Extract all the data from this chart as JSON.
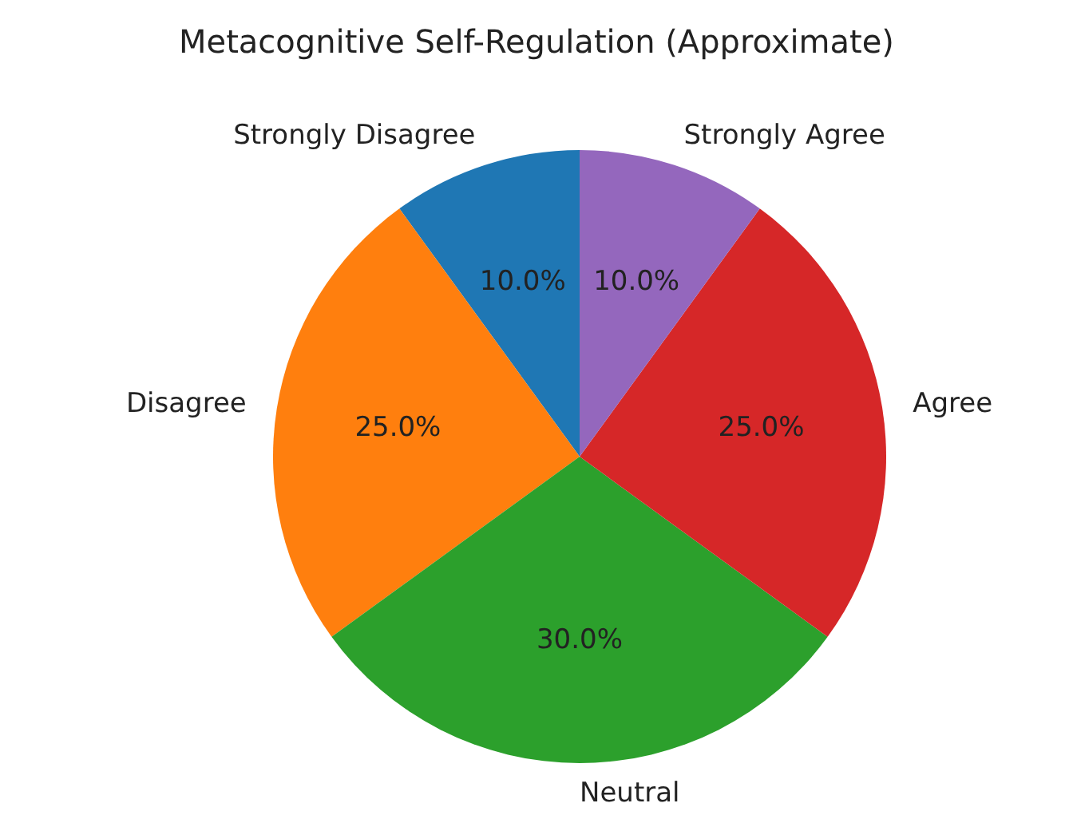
{
  "chart_data": {
    "type": "pie",
    "title": "Metacognitive Self-Regulation (Approximate)",
    "categories": [
      "Strongly Disagree",
      "Disagree",
      "Neutral",
      "Agree",
      "Strongly Agree"
    ],
    "values": [
      10,
      25,
      30,
      25,
      10
    ],
    "value_labels": [
      "10.0%",
      "25.0%",
      "30.0%",
      "25.0%",
      "10.0%"
    ],
    "colors": [
      "#1f77b4",
      "#ff7f0e",
      "#2ca02c",
      "#d62728",
      "#9467bd"
    ],
    "legend": false
  }
}
